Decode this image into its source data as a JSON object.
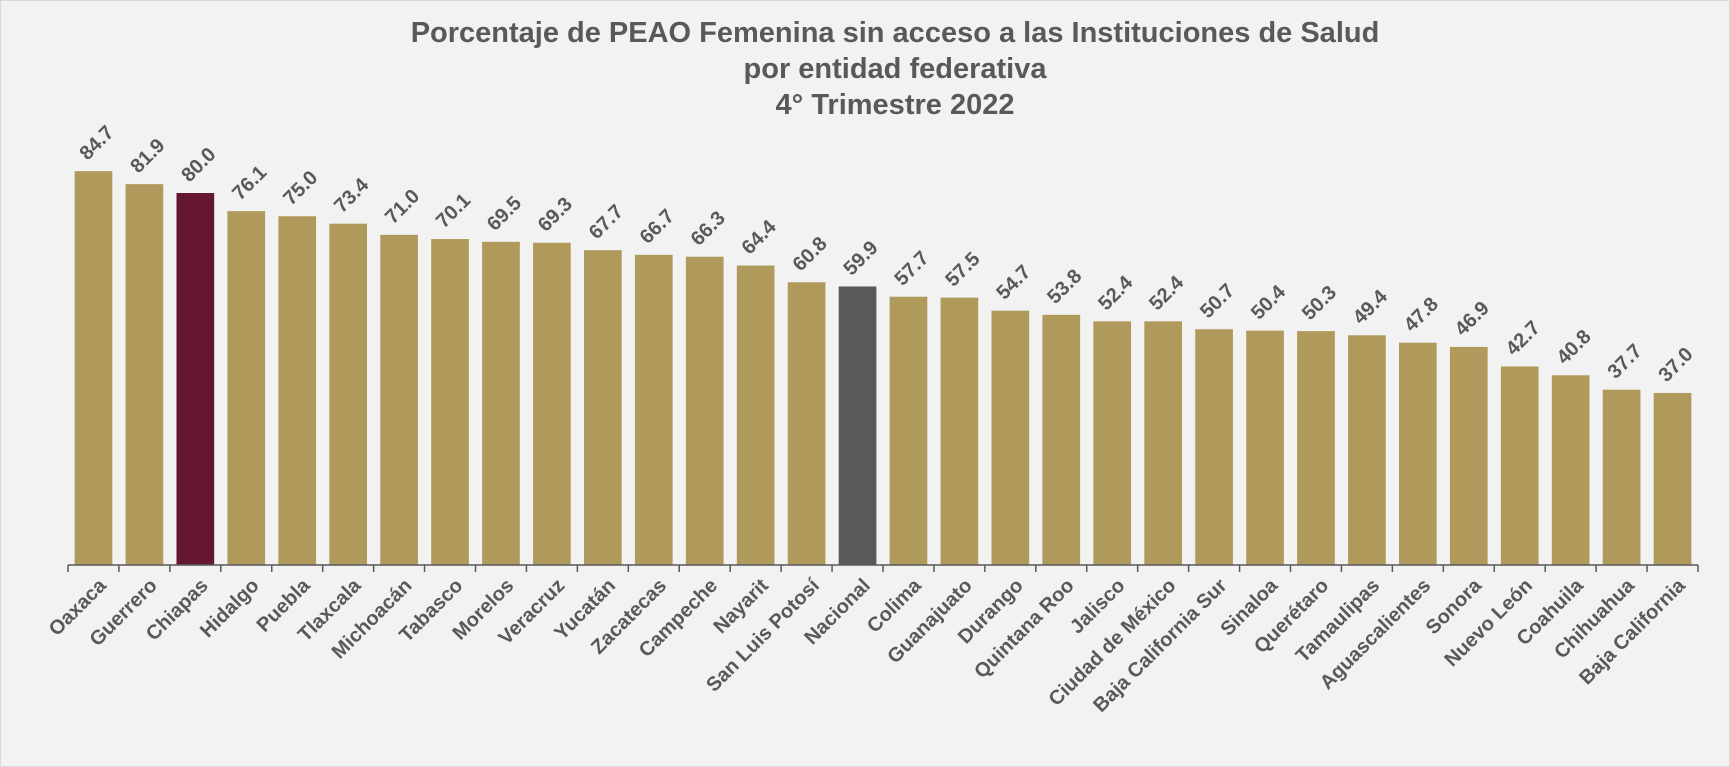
{
  "chart_data": {
    "type": "bar",
    "title": "Porcentaje de PEAO Femenina sin acceso a las Instituciones de Salud",
    "subtitle": [
      "por entidad federativa",
      "4° Trimestre 2022"
    ],
    "categories": [
      "Oaxaca",
      "Guerrero",
      "Chiapas",
      "Hidalgo",
      "Puebla",
      "Tlaxcala",
      "Michoacán",
      "Tabasco",
      "Morelos",
      "Veracruz",
      "Yucatán",
      "Zacatecas",
      "Campeche",
      "Nayarit",
      "San Luis Potosí",
      "Nacional",
      "Colima",
      "Guanajuato",
      "Durango",
      "Quintana Roo",
      "Jalisco",
      "Ciudad de México",
      "Baja California Sur",
      "Sinaloa",
      "Querétaro",
      "Tamaulipas",
      "Aguascalientes",
      "Sonora",
      "Nuevo León",
      "Coahuila",
      "Chihuahua",
      "Baja California"
    ],
    "values": [
      84.7,
      81.9,
      80.0,
      76.1,
      75.0,
      73.4,
      71.0,
      70.1,
      69.5,
      69.3,
      67.7,
      66.7,
      66.3,
      64.4,
      60.8,
      59.9,
      57.7,
      57.5,
      54.7,
      53.8,
      52.4,
      52.4,
      50.7,
      50.4,
      50.3,
      49.4,
      47.8,
      46.9,
      42.7,
      40.8,
      37.7,
      37.0
    ],
    "value_labels": [
      "84.7",
      "81.9",
      "80.0",
      "76.1",
      "75.0",
      "73.4",
      "71.0",
      "70.1",
      "69.5",
      "69.3",
      "67.7",
      "66.7",
      "66.3",
      "64.4",
      "60.8",
      "59.9",
      "57.7",
      "57.5",
      "54.7",
      "53.8",
      "52.4",
      "52.4",
      "50.7",
      "50.4",
      "50.3",
      "49.4",
      "47.8",
      "46.9",
      "42.7",
      "40.8",
      "37.7",
      "37.0"
    ],
    "colors": [
      "#b09a5b",
      "#b09a5b",
      "#651632",
      "#b09a5b",
      "#b09a5b",
      "#b09a5b",
      "#b09a5b",
      "#b09a5b",
      "#b09a5b",
      "#b09a5b",
      "#b09a5b",
      "#b09a5b",
      "#b09a5b",
      "#b09a5b",
      "#b09a5b",
      "#595959",
      "#b09a5b",
      "#b09a5b",
      "#b09a5b",
      "#b09a5b",
      "#b09a5b",
      "#b09a5b",
      "#b09a5b",
      "#b09a5b",
      "#b09a5b",
      "#b09a5b",
      "#b09a5b",
      "#b09a5b",
      "#b09a5b",
      "#b09a5b",
      "#b09a5b",
      "#b09a5b"
    ],
    "ylim": [
      0,
      100
    ]
  }
}
